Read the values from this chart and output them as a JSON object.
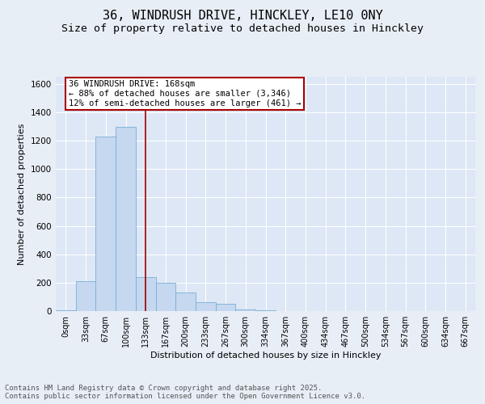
{
  "title_line1": "36, WINDRUSH DRIVE, HINCKLEY, LE10 0NY",
  "title_line2": "Size of property relative to detached houses in Hinckley",
  "xlabel": "Distribution of detached houses by size in Hinckley",
  "ylabel": "Number of detached properties",
  "bar_color": "#c5d8f0",
  "bar_edge_color": "#7aadd4",
  "background_color": "#e8eef6",
  "plot_bg_color": "#dde7f5",
  "grid_color": "#ffffff",
  "annotation_box_color": "#aa0000",
  "vline_color": "#990000",
  "bins": [
    "0sqm",
    "33sqm",
    "67sqm",
    "100sqm",
    "133sqm",
    "167sqm",
    "200sqm",
    "233sqm",
    "267sqm",
    "300sqm",
    "334sqm",
    "367sqm",
    "400sqm",
    "434sqm",
    "467sqm",
    "500sqm",
    "534sqm",
    "567sqm",
    "600sqm",
    "634sqm",
    "667sqm"
  ],
  "values": [
    5,
    210,
    1230,
    1295,
    240,
    200,
    130,
    60,
    50,
    10,
    5,
    0,
    0,
    0,
    0,
    0,
    0,
    0,
    0,
    0,
    0
  ],
  "ylim": [
    0,
    1650
  ],
  "yticks": [
    0,
    200,
    400,
    600,
    800,
    1000,
    1200,
    1400,
    1600
  ],
  "vline_x_idx": 4,
  "annotation_text": "36 WINDRUSH DRIVE: 168sqm\n← 88% of detached houses are smaller (3,346)\n12% of semi-detached houses are larger (461) →",
  "footnote": "Contains HM Land Registry data © Crown copyright and database right 2025.\nContains public sector information licensed under the Open Government Licence v3.0.",
  "title_fontsize": 11,
  "subtitle_fontsize": 9.5,
  "axis_label_fontsize": 8,
  "tick_fontsize": 7.5,
  "annotation_fontsize": 7.5,
  "footnote_fontsize": 6.5
}
